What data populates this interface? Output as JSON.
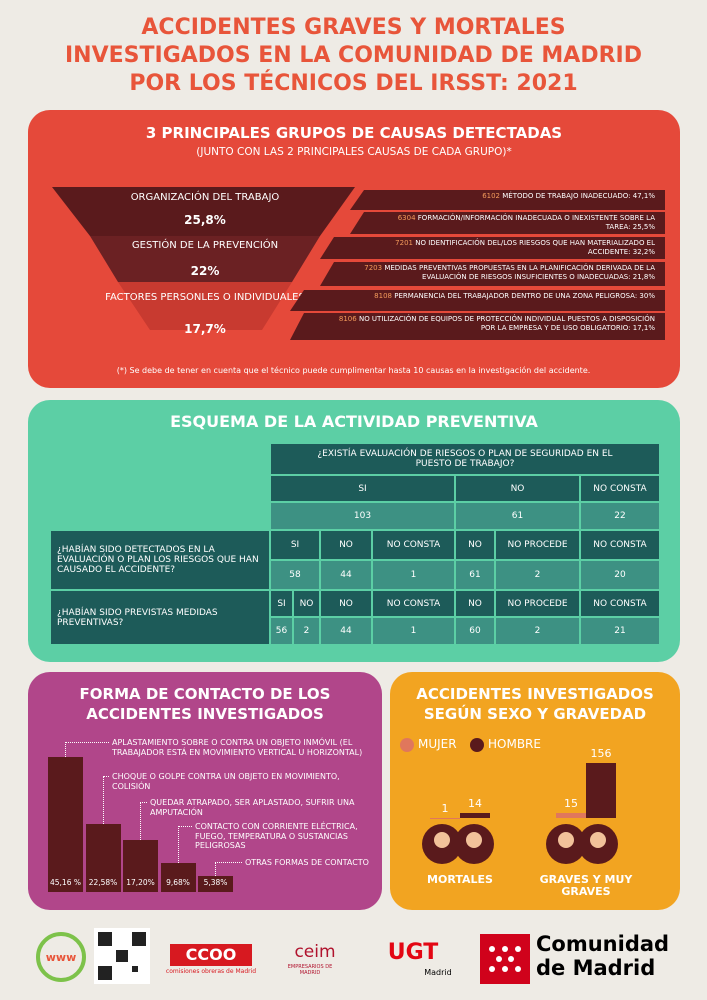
{
  "header": {
    "title": "ACCIDENTES GRAVES Y MORTALES INVESTIGADOS EN LA COMUNIDAD DE MADRID POR LOS TÉCNICOS DEL IRSST: 2021"
  },
  "causes": {
    "title": "3 PRINCIPALES GRUPOS DE CAUSAS DETECTADAS",
    "subtitle": "(JUNTO CON LAS 2 PRINCIPALES CAUSAS DE CADA GRUPO)*",
    "groups": [
      {
        "name": "ORGANIZACIÓN DEL TRABAJO",
        "value": "25,8%",
        "causes": [
          {
            "code": "6102",
            "text": "MÉTODO DE TRABAJO INADECUADO: 47,1%"
          },
          {
            "code": "6304",
            "text": "FORMACIÓN/INFORMACIÓN INADECUADA O INEXISTENTE SOBRE LA TAREA: 25,5%"
          }
        ]
      },
      {
        "name": "GESTIÓN DE LA PREVENCIÓN",
        "value": "22%",
        "causes": [
          {
            "code": "7201",
            "text": "NO IDENTIFICACIÓN DEL/LOS RIESGOS QUE HAN MATERIALIZADO EL ACCIDENTE: 32,2%"
          },
          {
            "code": "7203",
            "text": "MEDIDAS PREVENTIVAS PROPUESTAS EN LA PLANIFICACIÓN DERIVADA DE LA EVALUACIÓN DE RIESGOS INSUFICIENTES O INADECUADAS: 21,8%"
          }
        ]
      },
      {
        "name": "FACTORES PERSONLES O INDIVIDUALES",
        "value": "17,7%",
        "causes": [
          {
            "code": "8108",
            "text": "PERMANENCIA DEL TRABAJADOR DENTRO DE UNA ZONA PELIGROSA: 30%"
          },
          {
            "code": "8106",
            "text": "NO UTILIZACIÓN DE EQUIPOS DE PROTECCIÓN INDIVIDUAL PUESTOS A DISPOSICIÓN POR LA EMPRESA Y DE USO OBLIGATORIO: 17,1%"
          }
        ]
      }
    ],
    "footnote": "(*) Se debe de tener en cuenta que el técnico puede cumplimentar hasta 10 causas en la investigación del accidente."
  },
  "activity": {
    "title": "ESQUEMA DE LA ACTIVIDAD PREVENTIVA",
    "question": "¿EXISTÍA EVALUACIÓN DE RIESGOS O PLAN DE SEGURIDAD EN EL PUESTO DE TRABAJO?",
    "columns": [
      "SI",
      "NO",
      "NO CONSTA"
    ],
    "totals": [
      103,
      61,
      22
    ],
    "rows": [
      {
        "label": "¿HABÍAN SIDO DETECTADOS EN LA EVALUACIÓN O PLAN LOS RIESGOS QUE HAN CAUSADO EL ACCIDENTE?",
        "headers": [
          "SI",
          "NO",
          "NO CONSTA",
          "NO",
          "NO PROCEDE",
          "NO CONSTA"
        ],
        "values": [
          58,
          44,
          1,
          61,
          2,
          20
        ]
      },
      {
        "label": "¿HABÍAN SIDO PREVISTAS MEDIDAS PREVENTIVAS?",
        "headers": [
          "SI",
          "NO",
          "NO",
          "NO CONSTA",
          "NO",
          "NO PROCEDE",
          "NO CONSTA"
        ],
        "values": [
          56,
          2,
          44,
          1,
          60,
          2,
          21
        ]
      }
    ]
  },
  "contact": {
    "title": "FORMA DE CONTACTO DE LOS ACCIDENTES INVESTIGADOS",
    "labels": [
      "APLASTAMIENTO SOBRE O CONTRA UN OBJETO INMÓVIL (EL TRABAJADOR ESTÁ EN MOVIMIENTO VERTICAL U HORIZONTAL)",
      "CHOQUE O GOLPE CONTRA UN OBJETO EN MOVIMIENTO, COLISIÓN",
      "QUEDAR ATRAPADO, SER APLASTADO, SUFRIR UNA AMPUTACIÓN",
      "CONTACTO CON CORRIENTE ELÉCTRICA, FUEGO, TEMPERATURA O SUSTANCIAS PELIGROSAS",
      "OTRAS FORMAS DE CONTACTO"
    ],
    "values": [
      45.16,
      22.58,
      17.2,
      9.68,
      5.38
    ],
    "value_labels": [
      "45,16 %",
      "22,58%",
      "17,20%",
      "9,68%",
      "5,38%"
    ]
  },
  "gender": {
    "title": "ACCIDENTES INVESTIGADOS SEGÚN SEXO Y GRAVEDAD",
    "legend": [
      "MUJER",
      "HOMBRE"
    ],
    "colors": [
      "#e0775c",
      "#5a1a1c"
    ],
    "groups": [
      {
        "name": "MORTALES",
        "values": [
          1,
          14
        ]
      },
      {
        "name": "GRAVES Y MUY GRAVES",
        "values": [
          15,
          156
        ]
      }
    ]
  },
  "footer": {
    "web": "www",
    "ccoo": "CCOO",
    "ccoo_sub": "comisiones obreras de Madrid",
    "ceim": "ceim",
    "ceim_sub": "EMPRESARIOS DE MADRID",
    "ugt": "UGT",
    "ugt_sub": "Madrid",
    "cam": "Comunidad de Madrid"
  }
}
